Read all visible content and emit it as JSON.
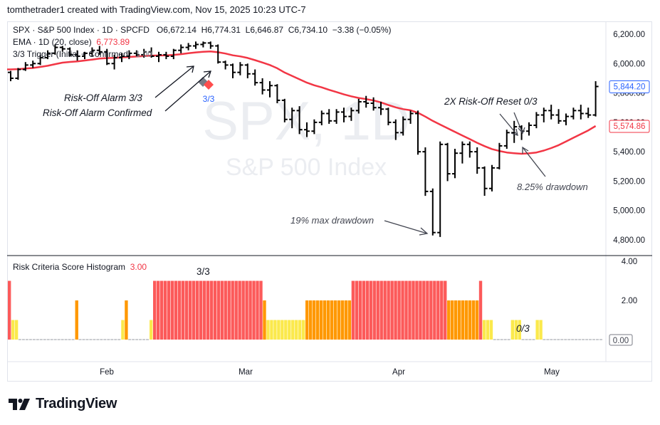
{
  "header": {
    "credit": "tomthetrader1 created with TradingView.com, Nov 15, 2025 10:23 UTC-7"
  },
  "legend": {
    "symbol_line": "SPX · S&P 500 Index · 1D · SPCFD",
    "ohlc_o": "O6,672.14",
    "ohlc_h": "H6,774.31",
    "ohlc_l": "L6,646.87",
    "ohlc_c": "C6,734.10",
    "change": "−3.38 (−0.05%)",
    "ema_label": "EMA · 1D (20, close)",
    "ema_value": "6,773.89",
    "trigger_label": "3/3 Trigger (Initial + Confirmed)",
    "trigger_value": "1.00",
    "histogram_label": "Risk Criteria Score Histogram",
    "histogram_value": "3.00"
  },
  "watermark": {
    "symbol": "SPX, 1D",
    "name": "S&P 500 Index"
  },
  "annotations": {
    "risk_off_alarm": "Risk-Off Alarm 3/3",
    "risk_off_confirmed": "Risk-Off Alarm Confirmed",
    "marker_label": "3/3",
    "max_drawdown": "19% max drawdown",
    "reset": "2X Risk-Off Reset 0/3",
    "drawdown_2": "8.25% drawdown",
    "hist_33": "3/3",
    "hist_03": "0/3"
  },
  "brand": {
    "name": "TradingView"
  },
  "colors": {
    "ema": "#f23645",
    "bar": "#000000",
    "hist_red": "#fc5a5a",
    "hist_orange": "#ff9800",
    "hist_yellow": "#fbe94c",
    "marker_red": "#ff4d4d",
    "marker_gray": "#787b86",
    "last_price": "#2962ff"
  },
  "chart_data": [
    {
      "type": "ohlc",
      "title": "SPX · S&P 500 Index · 1D · SPCFD",
      "x_tick_labels": [
        "Feb",
        "Mar",
        "Apr",
        "May"
      ],
      "y_tick_labels": [
        "4,800.00",
        "5,000.00",
        "5,200.00",
        "5,400.00",
        "5,600.00",
        "5,800.00",
        "6,000.00",
        "6,200.00"
      ],
      "ylim": [
        4700,
        6300
      ],
      "price_labels": [
        {
          "label": "5,844.20",
          "value": 5844.2,
          "color": "#2962ff"
        },
        {
          "label": "5,574.86",
          "value": 5574.86,
          "color": "#f23645"
        }
      ],
      "bars": [
        [
          5940,
          5950,
          5880,
          5900
        ],
        [
          5900,
          5970,
          5890,
          5960
        ],
        [
          5960,
          6010,
          5950,
          5990
        ],
        [
          5990,
          6020,
          5970,
          6000
        ],
        [
          6000,
          6060,
          5990,
          6040
        ],
        [
          6040,
          6090,
          6030,
          6070
        ],
        [
          6070,
          6130,
          6060,
          6110
        ],
        [
          6110,
          6120,
          6080,
          6100
        ],
        [
          6100,
          6110,
          6050,
          6060
        ],
        [
          6060,
          6090,
          6020,
          6050
        ],
        [
          6050,
          6080,
          6030,
          6070
        ],
        [
          6070,
          6110,
          6050,
          6090
        ],
        [
          6090,
          6120,
          6060,
          6080
        ],
        [
          6080,
          6100,
          5990,
          6000
        ],
        [
          6000,
          6060,
          5960,
          6040
        ],
        [
          6040,
          6070,
          6010,
          6050
        ],
        [
          6050,
          6090,
          6030,
          6070
        ],
        [
          6070,
          6090,
          6050,
          6060
        ],
        [
          6060,
          6100,
          6040,
          6080
        ],
        [
          6080,
          6110,
          6040,
          6050
        ],
        [
          6050,
          6080,
          6010,
          6060
        ],
        [
          6060,
          6080,
          6030,
          6050
        ],
        [
          6050,
          6100,
          6030,
          6090
        ],
        [
          6090,
          6130,
          6070,
          6110
        ],
        [
          6110,
          6140,
          6090,
          6120
        ],
        [
          6120,
          6150,
          6100,
          6130
        ],
        [
          6130,
          6150,
          6110,
          6140
        ],
        [
          6140,
          6150,
          6100,
          6120
        ],
        [
          6120,
          6130,
          6000,
          6010
        ],
        [
          6010,
          6020,
          5960,
          5990
        ],
        [
          5990,
          6000,
          5900,
          5940
        ],
        [
          5940,
          6010,
          5920,
          5990
        ],
        [
          5990,
          6000,
          5900,
          5930
        ],
        [
          5930,
          5960,
          5850,
          5870
        ],
        [
          5870,
          5900,
          5790,
          5820
        ],
        [
          5820,
          5880,
          5770,
          5850
        ],
        [
          5850,
          5860,
          5730,
          5750
        ],
        [
          5750,
          5760,
          5600,
          5620
        ],
        [
          5620,
          5700,
          5560,
          5680
        ],
        [
          5680,
          5710,
          5520,
          5550
        ],
        [
          5550,
          5600,
          5500,
          5540
        ],
        [
          5540,
          5620,
          5520,
          5600
        ],
        [
          5600,
          5680,
          5580,
          5660
        ],
        [
          5660,
          5690,
          5590,
          5610
        ],
        [
          5610,
          5690,
          5590,
          5670
        ],
        [
          5670,
          5700,
          5600,
          5640
        ],
        [
          5640,
          5700,
          5610,
          5680
        ],
        [
          5680,
          5760,
          5660,
          5740
        ],
        [
          5740,
          5780,
          5700,
          5730
        ],
        [
          5730,
          5770,
          5680,
          5700
        ],
        [
          5700,
          5740,
          5650,
          5690
        ],
        [
          5690,
          5700,
          5580,
          5600
        ],
        [
          5600,
          5620,
          5480,
          5530
        ],
        [
          5530,
          5640,
          5510,
          5620
        ],
        [
          5620,
          5680,
          5590,
          5660
        ],
        [
          5660,
          5680,
          5380,
          5400
        ],
        [
          5400,
          5430,
          5100,
          5130
        ],
        [
          5130,
          5150,
          4830,
          4850
        ],
        [
          4850,
          5470,
          4820,
          5450
        ],
        [
          5450,
          5460,
          5200,
          5250
        ],
        [
          5250,
          5420,
          5220,
          5390
        ],
        [
          5390,
          5470,
          5320,
          5450
        ],
        [
          5450,
          5470,
          5360,
          5400
        ],
        [
          5400,
          5430,
          5250,
          5290
        ],
        [
          5290,
          5300,
          5100,
          5150
        ],
        [
          5150,
          5310,
          5130,
          5290
        ],
        [
          5290,
          5460,
          5280,
          5440
        ],
        [
          5440,
          5550,
          5420,
          5530
        ],
        [
          5530,
          5610,
          5460,
          5570
        ],
        [
          5570,
          5580,
          5480,
          5540
        ],
        [
          5540,
          5600,
          5510,
          5580
        ],
        [
          5580,
          5670,
          5560,
          5650
        ],
        [
          5650,
          5700,
          5600,
          5680
        ],
        [
          5680,
          5720,
          5620,
          5650
        ],
        [
          5650,
          5690,
          5590,
          5610
        ],
        [
          5610,
          5660,
          5580,
          5640
        ],
        [
          5640,
          5700,
          5620,
          5680
        ],
        [
          5680,
          5720,
          5620,
          5660
        ],
        [
          5660,
          5700,
          5630,
          5650
        ],
        [
          5650,
          5880,
          5640,
          5844
        ]
      ],
      "ema_20": [
        5960,
        5962,
        5966,
        5970,
        5977,
        5985,
        5996,
        6006,
        6011,
        6015,
        6021,
        6027,
        6034,
        6037,
        6039,
        6042,
        6045,
        6048,
        6051,
        6054,
        6055,
        6056,
        6059,
        6064,
        6070,
        6076,
        6080,
        6083,
        6077,
        6068,
        6056,
        6049,
        6038,
        6023,
        6007,
        5990,
        5968,
        5939,
        5916,
        5893,
        5870,
        5852,
        5838,
        5821,
        5806,
        5790,
        5777,
        5766,
        5758,
        5749,
        5736,
        5718,
        5702,
        5690,
        5682,
        5665,
        5639,
        5610,
        5585,
        5560,
        5535,
        5510,
        5486,
        5461,
        5438,
        5418,
        5405,
        5395,
        5390,
        5386,
        5389,
        5395,
        5408,
        5425,
        5445,
        5470,
        5495,
        5520,
        5545,
        5575
      ]
    },
    {
      "type": "bar",
      "title": "Risk Criteria Score Histogram",
      "y_tick_labels": [
        "0.00",
        "2.00",
        "4.00"
      ],
      "ylim": [
        0,
        4
      ],
      "value_label": "0.00",
      "values": [
        3,
        1,
        1,
        0,
        0,
        0,
        0,
        0,
        0,
        0,
        0,
        0,
        0,
        0,
        0,
        0,
        0,
        0,
        0,
        2,
        0,
        0,
        0,
        0,
        0,
        0,
        0,
        0,
        0,
        0,
        0,
        0,
        1,
        2,
        0,
        0,
        0,
        0,
        0,
        0,
        1,
        3,
        3,
        3,
        3,
        3,
        3,
        3,
        3,
        3,
        3,
        3,
        3,
        3,
        3,
        3,
        3,
        3,
        3,
        3,
        3,
        3,
        3,
        3,
        3,
        3,
        3,
        3,
        3,
        3,
        3,
        3,
        2,
        1,
        1,
        1,
        1,
        1,
        1,
        1,
        1,
        1,
        1,
        1,
        2,
        2,
        2,
        2,
        2,
        2,
        2,
        2,
        2,
        2,
        2,
        2,
        2,
        3,
        3,
        3,
        3,
        3,
        3,
        3,
        3,
        3,
        3,
        3,
        3,
        3,
        3,
        3,
        3,
        3,
        3,
        3,
        3,
        3,
        3,
        3,
        3,
        3,
        3,
        3,
        2,
        2,
        2,
        2,
        2,
        2,
        2,
        2,
        2,
        3,
        1,
        1,
        1,
        0,
        0,
        0,
        0,
        0,
        1,
        1,
        1,
        0,
        0,
        0,
        0,
        1,
        1,
        0,
        0,
        0,
        0,
        0,
        0,
        0,
        0,
        0,
        0,
        0,
        0,
        0,
        0,
        0,
        0,
        0
      ]
    }
  ]
}
